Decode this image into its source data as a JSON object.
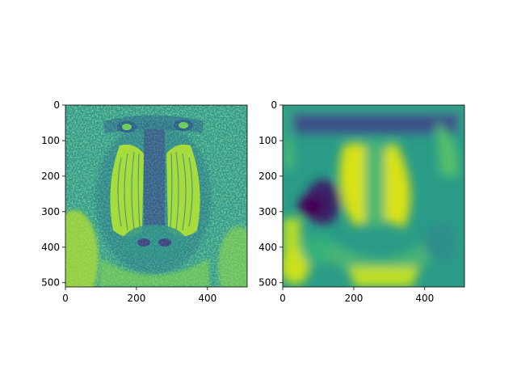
{
  "figure": {
    "background": "#ffffff",
    "colormap": "viridis",
    "colormap_stops": [
      "#440154",
      "#3b528b",
      "#21918c",
      "#5ec962",
      "#fde725"
    ]
  },
  "panels": [
    {
      "name": "left-image-panel",
      "content": "mandrill photo, grayscale intensity mapped to viridis",
      "x_ticks": [
        "0",
        "200",
        "400"
      ],
      "y_ticks": [
        "0",
        "100",
        "200",
        "300",
        "400",
        "500"
      ],
      "x_range": [
        0,
        512
      ],
      "y_range": [
        0,
        512
      ]
    },
    {
      "name": "right-image-panel",
      "content": "heavily smoothed/blurred mandrill, viridis",
      "x_ticks": [
        "0",
        "200",
        "400"
      ],
      "y_ticks": [
        "0",
        "100",
        "200",
        "300",
        "400",
        "500"
      ],
      "x_range": [
        0,
        512
      ],
      "y_range": [
        0,
        512
      ]
    }
  ],
  "x_tick_values": [
    0,
    200,
    400
  ],
  "y_tick_values": [
    0,
    100,
    200,
    300,
    400,
    500
  ]
}
